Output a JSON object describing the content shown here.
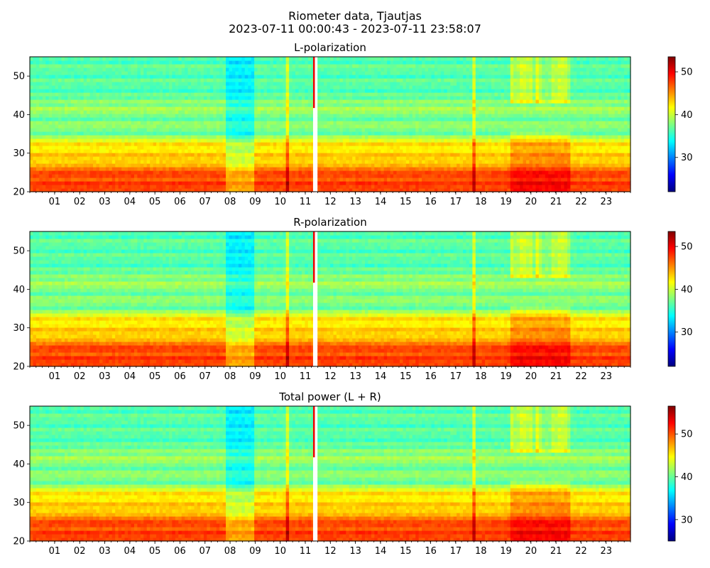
{
  "figure": {
    "title_line1": "Riometer data, Tjautjas",
    "title_line2": "2023-07-11 00:00:43 - 2023-07-11 23:58:07"
  },
  "chart_data": [
    {
      "type": "heatmap",
      "title": "L-polarization",
      "x_range_hours": [
        0.012,
        23.969
      ],
      "x_tick_labels": [
        "01",
        "02",
        "03",
        "04",
        "05",
        "06",
        "07",
        "08",
        "09",
        "10",
        "11",
        "12",
        "13",
        "14",
        "15",
        "16",
        "17",
        "18",
        "19",
        "20",
        "21",
        "22",
        "23"
      ],
      "ylim": [
        20,
        55
      ],
      "y_ticks": [
        20,
        30,
        40,
        50
      ],
      "colorbar": {
        "colormap": "jet",
        "range": [
          22,
          53.5
        ],
        "ticks": [
          30,
          40,
          50
        ]
      },
      "data_gap_hours": [
        11.38,
        11.45
      ],
      "noisy_column_hours": [
        10.3,
        17.7
      ],
      "disturbed_interval_hours": [
        19.2,
        21.6
      ]
    },
    {
      "type": "heatmap",
      "title": "R-polarization",
      "x_range_hours": [
        0.012,
        23.969
      ],
      "x_tick_labels": [
        "01",
        "02",
        "03",
        "04",
        "05",
        "06",
        "07",
        "08",
        "09",
        "10",
        "11",
        "12",
        "13",
        "14",
        "15",
        "16",
        "17",
        "18",
        "19",
        "20",
        "21",
        "22",
        "23"
      ],
      "ylim": [
        20,
        55
      ],
      "y_ticks": [
        20,
        30,
        40,
        50
      ],
      "colorbar": {
        "colormap": "jet",
        "range": [
          22,
          53.5
        ],
        "ticks": [
          30,
          40,
          50
        ]
      },
      "data_gap_hours": [
        11.38,
        11.45
      ],
      "noisy_column_hours": [
        10.3,
        17.7
      ],
      "disturbed_interval_hours": [
        19.2,
        21.6
      ]
    },
    {
      "type": "heatmap",
      "title": "Total power (L + R)",
      "x_range_hours": [
        0.012,
        23.969
      ],
      "x_tick_labels": [
        "01",
        "02",
        "03",
        "04",
        "05",
        "06",
        "07",
        "08",
        "09",
        "10",
        "11",
        "12",
        "13",
        "14",
        "15",
        "16",
        "17",
        "18",
        "19",
        "20",
        "21",
        "22",
        "23"
      ],
      "ylim": [
        20,
        55
      ],
      "y_ticks": [
        20,
        30,
        40,
        50
      ],
      "colorbar": {
        "colormap": "jet",
        "range": [
          25,
          56.5
        ],
        "ticks": [
          30,
          40,
          50
        ]
      },
      "data_gap_hours": [
        11.38,
        11.45
      ],
      "noisy_column_hours": [
        10.3,
        17.7
      ],
      "disturbed_interval_hours": [
        19.2,
        21.6
      ]
    }
  ]
}
